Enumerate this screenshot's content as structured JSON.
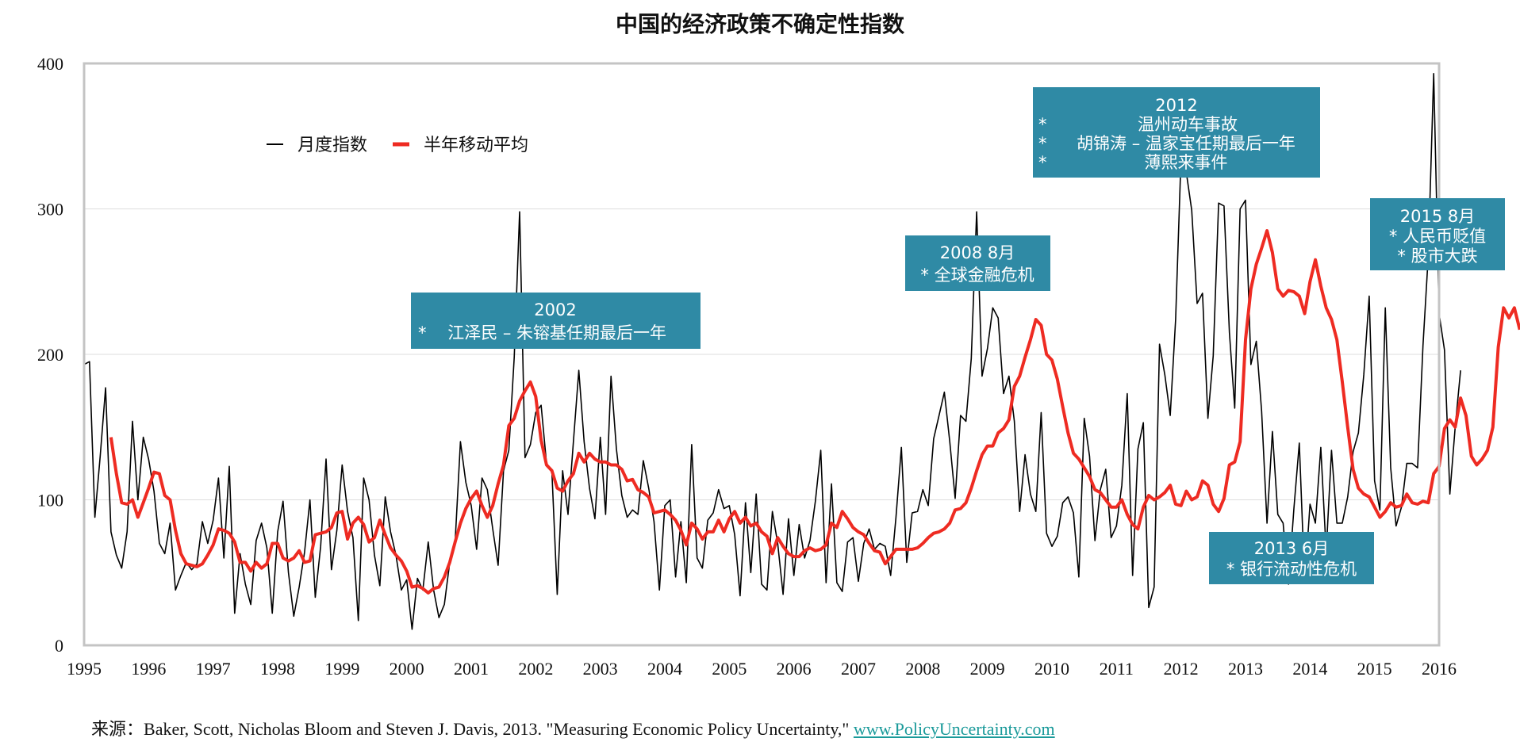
{
  "colors": {
    "monthly_line": "#000000",
    "moving_avg_line": "#ee2b22",
    "annotation_fill": "#2f8aa5",
    "grid": "#dddddd",
    "frame": "#c4c4c4"
  },
  "chart_data": {
    "type": "line",
    "title": "中国的经济政策不确定性指数",
    "xlabel": "",
    "ylabel": "",
    "xlim": [
      1995.0,
      2016.0
    ],
    "ylim": [
      0,
      400
    ],
    "x_ticks": [
      "1995",
      "1996",
      "1997",
      "1998",
      "1999",
      "2000",
      "2001",
      "2002",
      "2003",
      "2004",
      "2005",
      "2006",
      "2007",
      "2008",
      "2009",
      "2010",
      "2011",
      "2012",
      "2013",
      "2014",
      "2015",
      "2016"
    ],
    "y_ticks": [
      "0",
      "100",
      "200",
      "300",
      "400"
    ],
    "grid": "horizontal",
    "legend_position": "top-left",
    "series": [
      {
        "name": "月度指数",
        "x_start": 1995.0,
        "x_step_months": 1,
        "values": [
          193,
          195,
          88,
          130,
          177,
          78,
          62,
          53,
          78,
          154,
          100,
          143,
          128,
          106,
          70,
          63,
          84,
          38,
          48,
          57,
          52,
          56,
          85,
          70,
          86,
          115,
          60,
          123,
          22,
          63,
          42,
          28,
          72,
          84,
          67,
          22,
          78,
          99,
          50,
          20,
          40,
          64,
          100,
          33,
          68,
          128,
          52,
          79,
          124,
          92,
          74,
          17,
          115,
          100,
          62,
          41,
          102,
          78,
          62,
          38,
          45,
          11,
          46,
          38,
          71,
          38,
          19,
          28,
          57,
          71,
          140,
          112,
          96,
          66,
          115,
          107,
          80,
          55,
          120,
          134,
          198,
          298,
          129,
          138,
          160,
          165,
          125,
          119,
          35,
          120,
          90,
          140,
          189,
          140,
          108,
          87,
          143,
          90,
          185,
          135,
          103,
          88,
          93,
          90,
          127,
          108,
          85,
          38,
          96,
          100,
          47,
          85,
          43,
          138,
          60,
          53,
          86,
          91,
          107,
          94,
          96,
          76,
          34,
          98,
          50,
          104,
          42,
          38,
          92,
          70,
          35,
          87,
          48,
          83,
          60,
          72,
          99,
          134,
          43,
          111,
          43,
          37,
          71,
          74,
          44,
          70,
          80,
          66,
          70,
          68,
          48,
          88,
          136,
          57,
          91,
          92,
          107,
          96,
          142,
          158,
          174,
          140,
          101,
          158,
          154,
          197,
          298,
          185,
          204,
          232,
          225,
          173,
          185,
          154,
          92,
          131,
          104,
          92,
          160,
          77,
          68,
          75,
          98,
          102,
          91,
          47,
          156,
          130,
          72,
          107,
          121,
          74,
          82,
          110,
          173,
          48,
          135,
          153,
          26,
          40,
          207,
          186,
          158,
          224,
          335,
          325,
          299,
          235,
          242,
          156,
          199,
          304,
          302,
          215,
          163,
          300,
          306,
          193,
          209,
          161,
          84,
          147,
          90,
          84,
          42,
          94,
          139,
          43,
          97,
          84,
          136,
          64,
          134,
          84,
          84,
          102,
          133,
          146,
          186,
          240,
          113,
          93,
          232,
          122,
          82,
          95,
          125,
          125,
          122,
          206,
          268,
          393,
          228,
          203,
          104,
          150,
          189
        ]
      },
      {
        "name": "半年移动平均",
        "x_start": 1995.4167,
        "x_step_months": 1,
        "values": [
          143,
          118,
          98,
          97,
          100,
          88,
          98,
          108,
          119,
          118,
          103,
          100,
          79,
          63,
          56,
          55,
          54,
          56,
          62,
          69,
          80,
          79,
          77,
          71,
          57,
          57,
          51,
          57,
          53,
          56,
          70,
          70,
          60,
          58,
          60,
          65,
          57,
          58,
          76,
          77,
          78,
          81,
          91,
          92,
          73,
          84,
          88,
          83,
          71,
          74,
          86,
          76,
          67,
          62,
          58,
          51,
          40,
          41,
          39,
          36,
          39,
          40,
          47,
          57,
          71,
          84,
          94,
          101,
          106,
          96,
          88,
          96,
          111,
          124,
          151,
          156,
          168,
          175,
          181,
          171,
          141,
          124,
          120,
          108,
          106,
          113,
          118,
          132,
          126,
          132,
          128,
          126,
          126,
          124,
          124,
          121,
          113,
          114,
          107,
          105,
          102,
          91,
          92,
          93,
          90,
          86,
          79,
          69,
          84,
          80,
          73,
          78,
          78,
          86,
          78,
          87,
          92,
          84,
          88,
          82,
          84,
          78,
          75,
          63,
          74,
          68,
          63,
          61,
          61,
          65,
          67,
          65,
          66,
          69,
          84,
          81,
          92,
          87,
          81,
          78,
          76,
          70,
          65,
          64,
          56,
          61,
          66,
          66,
          66,
          66,
          67,
          70,
          74,
          77,
          78,
          80,
          84,
          93,
          94,
          98,
          108,
          120,
          131,
          137,
          137,
          146,
          149,
          155,
          178,
          185,
          198,
          210,
          224,
          220,
          200,
          196,
          183,
          164,
          146,
          132,
          128,
          122,
          116,
          107,
          105,
          100,
          95,
          95,
          100,
          90,
          83,
          80,
          95,
          103,
          100,
          102,
          105,
          110,
          97,
          96,
          106,
          100,
          102,
          113,
          110,
          97,
          92,
          101,
          124,
          126,
          140,
          210,
          245,
          262,
          273,
          285,
          270,
          245,
          240,
          244,
          243,
          240,
          228,
          250,
          265,
          247,
          232,
          224,
          210,
          181,
          150,
          121,
          108,
          104,
          102,
          95,
          88,
          92,
          98,
          95,
          96,
          104,
          98,
          97,
          99,
          98,
          118,
          123,
          149,
          155,
          150,
          170,
          158,
          130,
          124,
          128,
          134,
          150,
          205,
          232,
          225,
          232,
          217
        ]
      }
    ],
    "annotations": [
      {
        "id": "2002",
        "lines": [
          "2002",
          "*    江泽民 – 朱镕基任期最后一年"
        ]
      },
      {
        "id": "2008",
        "lines": [
          "2008 8月",
          "* 全球金融危机"
        ]
      },
      {
        "id": "2012",
        "lines": [
          "2012",
          "温州动车事故",
          "胡锦涛 – 温家宝任期最后一年",
          "薄熙来事件"
        ],
        "bullets": [
          "*",
          "*",
          "*"
        ]
      },
      {
        "id": "2013",
        "lines": [
          "2013 6月",
          "* 银行流动性危机"
        ]
      },
      {
        "id": "2015",
        "lines": [
          "2015 8月",
          "* 人民币贬值",
          "* 股市大跌"
        ]
      }
    ]
  },
  "source": {
    "label": "来源：",
    "text": "Baker, Scott, Nicholas Bloom and Steven J. Davis, 2013. \"Measuring Economic Policy Uncertainty,\" ",
    "link_text": "www.PolicyUncertainty.com"
  }
}
